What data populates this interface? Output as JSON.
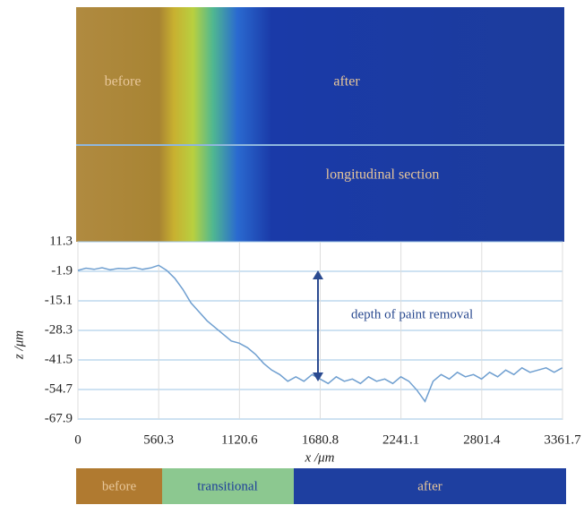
{
  "image": {
    "labels": [
      "before",
      "after",
      "longitudinal section"
    ]
  },
  "chart_data": {
    "type": "line",
    "annotation": "depth of paint removal",
    "xlabel": "x /μm",
    "ylabel": "z /μm",
    "x": [
      0,
      56,
      112,
      168,
      224,
      280,
      336,
      392,
      448,
      504,
      560,
      616,
      672,
      728,
      784,
      840,
      896,
      952,
      1008,
      1064,
      1120,
      1176,
      1232,
      1288,
      1344,
      1400,
      1456,
      1512,
      1568,
      1624,
      1680,
      1736,
      1792,
      1848,
      1904,
      1960,
      2016,
      2072,
      2128,
      2184,
      2240,
      2296,
      2352,
      2408,
      2464,
      2520,
      2576,
      2632,
      2688,
      2744,
      2800,
      2856,
      2912,
      2968,
      3024,
      3080,
      3136,
      3192,
      3248,
      3304,
      3360
    ],
    "values": [
      -1.5,
      -0.5,
      -1.0,
      -0.3,
      -1.2,
      -0.6,
      -0.8,
      -0.2,
      -1.0,
      -0.4,
      0.8,
      -1.5,
      -5,
      -10,
      -16,
      -20,
      -24,
      -27,
      -30,
      -33,
      -34,
      -36,
      -39,
      -43,
      -46,
      -48,
      -51,
      -49,
      -51,
      -48,
      -50,
      -52,
      -49,
      -51,
      -50,
      -52,
      -49,
      -51,
      -50,
      -52,
      -49,
      -51,
      -55,
      -60,
      -51,
      -48,
      -50,
      -47,
      -49,
      -48,
      -50,
      -47,
      -49,
      -46,
      -48,
      -45,
      -47,
      -46,
      -45,
      -47,
      -45
    ],
    "color": "#6f9fd0",
    "xlim": [
      0,
      3361.7
    ],
    "xticks": [
      0,
      560.3,
      1120.6,
      1680.8,
      2241.1,
      2801.4,
      3361.7
    ],
    "ylim": [
      -67.9,
      11.3
    ],
    "yticks": [
      11.3,
      -1.9,
      -15.1,
      -28.3,
      -41.5,
      -54.7,
      -67.9
    ],
    "grid": true
  },
  "phase_bar": {
    "labels": [
      "before",
      "transitional",
      "after"
    ]
  }
}
